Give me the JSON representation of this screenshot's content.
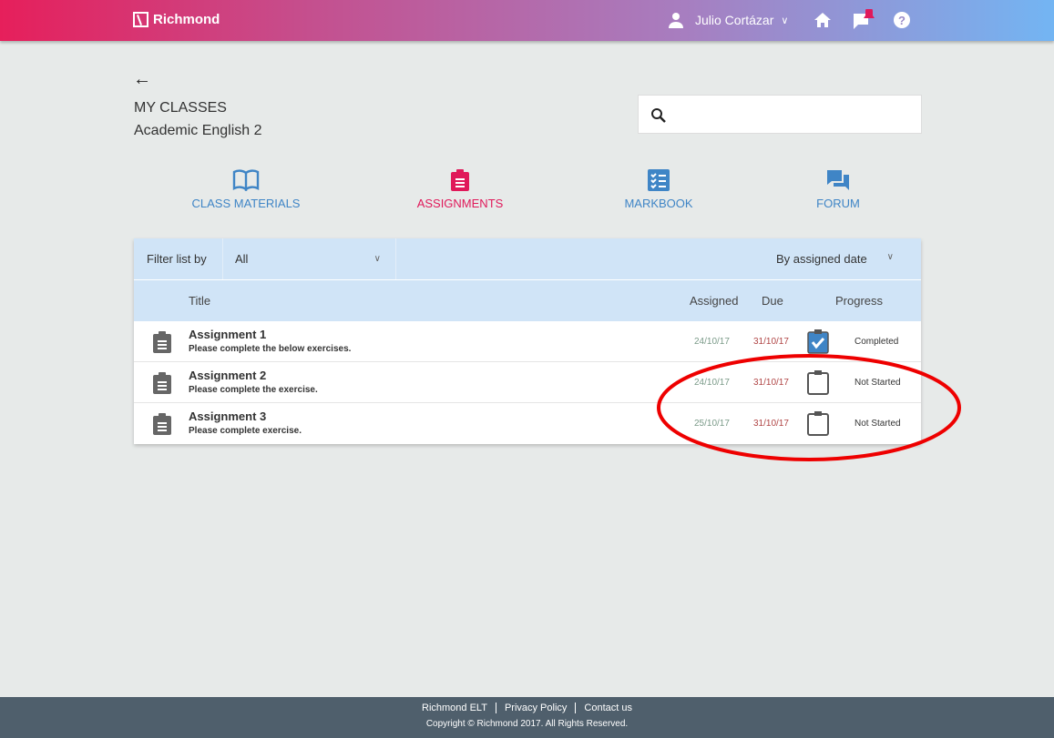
{
  "header": {
    "brand": "Richmond",
    "user_name": "Julio Cortázar",
    "icons": [
      "user-icon",
      "chevron-down-icon",
      "home-icon",
      "notifications-icon",
      "help-icon"
    ],
    "gradient": [
      "#e61f5b",
      "#73b5f3"
    ]
  },
  "page": {
    "title": "MY CLASSES",
    "class_name": "Academic English 2",
    "search_placeholder": ""
  },
  "tabs": [
    {
      "label": "CLASS MATERIALS",
      "icon": "book-icon"
    },
    {
      "label": "ASSIGNMENTS",
      "icon": "clipboard-icon",
      "active": true
    },
    {
      "label": "MARKBOOK",
      "icon": "checklist-icon"
    },
    {
      "label": "FORUM",
      "icon": "chat-icon"
    }
  ],
  "filter": {
    "label": "Filter list by",
    "value": "All",
    "sort": "By assigned date"
  },
  "columns": {
    "title": "Title",
    "assigned": "Assigned",
    "due": "Due",
    "progress": "Progress"
  },
  "assignments": [
    {
      "title": "Assignment 1",
      "desc": "Please complete the below exercises.",
      "assigned": "24/10/17",
      "due": "31/10/17",
      "progress": "Completed",
      "done": true
    },
    {
      "title": "Assignment 2",
      "desc": "Please complete the exercise.",
      "assigned": "24/10/17",
      "due": "31/10/17",
      "progress": "Not Started",
      "done": false
    },
    {
      "title": "Assignment 3",
      "desc": "Please complete exercise.",
      "assigned": "25/10/17",
      "due": "31/10/17",
      "progress": "Not Started",
      "done": false
    }
  ],
  "footer": {
    "links": [
      "Richmond ELT",
      "Privacy Policy",
      "Contact us"
    ],
    "copyright": "Copyright © Richmond 2017. All Rights Reserved."
  },
  "colors": {
    "accent": "#e0195a",
    "link": "#3f85c6",
    "annotation": "#ee0000"
  }
}
